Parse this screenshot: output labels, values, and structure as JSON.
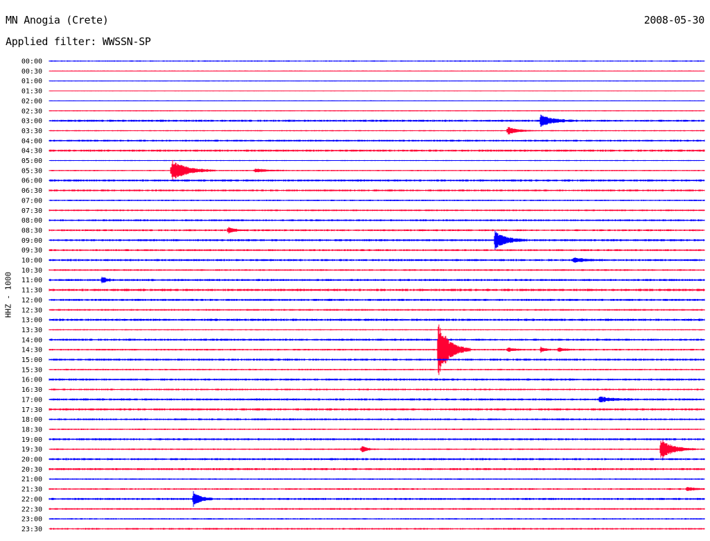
{
  "header": {
    "station": "MN Anogia (Crete)",
    "date": "2008-05-30",
    "filter": "Applied filter: WWSSN-SP"
  },
  "chart_data": {
    "type": "line",
    "title": "",
    "ylabel": "HHZ - 1000",
    "colors": {
      "even": "#0000ff",
      "odd": "#ff0033"
    },
    "row_minutes": 30,
    "row_labels": [
      "00:00",
      "00:30",
      "01:00",
      "01:30",
      "02:00",
      "02:30",
      "03:00",
      "03:30",
      "04:00",
      "04:30",
      "05:00",
      "05:30",
      "06:00",
      "06:30",
      "07:00",
      "07:30",
      "08:00",
      "08:30",
      "09:00",
      "09:30",
      "10:00",
      "10:30",
      "11:00",
      "11:30",
      "12:00",
      "12:30",
      "13:00",
      "13:30",
      "14:00",
      "14:30",
      "15:00",
      "15:30",
      "16:00",
      "16:30",
      "17:00",
      "17:30",
      "18:00",
      "18:30",
      "19:00",
      "19:30",
      "20:00",
      "20:30",
      "21:00",
      "21:30",
      "22:00",
      "22:30",
      "23:00",
      "23:30"
    ],
    "noise": [
      0.6,
      0.4,
      0.4,
      0.4,
      0.4,
      0.5,
      1.0,
      0.6,
      0.9,
      1.0,
      0.5,
      0.6,
      1.0,
      0.9,
      0.7,
      0.8,
      0.9,
      0.9,
      1.0,
      0.9,
      1.0,
      0.8,
      1.0,
      1.1,
      1.0,
      0.8,
      1.1,
      0.6,
      1.0,
      0.8,
      1.0,
      0.7,
      1.0,
      0.8,
      1.0,
      1.0,
      0.9,
      0.7,
      1.0,
      0.7,
      1.0,
      1.0,
      0.7,
      0.8,
      1.0,
      0.8,
      0.7,
      0.8
    ],
    "events": [
      {
        "row": 6,
        "minute": 22.5,
        "amplitude": 9,
        "duration": 1.5
      },
      {
        "row": 7,
        "minute": 21.0,
        "amplitude": 6,
        "duration": 1.2
      },
      {
        "row": 11,
        "minute": 5.6,
        "amplitude": 16,
        "duration": 2.0
      },
      {
        "row": 11,
        "minute": 9.4,
        "amplitude": 3,
        "duration": 1.5
      },
      {
        "row": 17,
        "minute": 8.2,
        "amplitude": 5,
        "duration": 0.8
      },
      {
        "row": 18,
        "minute": 20.4,
        "amplitude": 13,
        "duration": 1.5
      },
      {
        "row": 20,
        "minute": 24.0,
        "amplitude": 3,
        "duration": 1.6
      },
      {
        "row": 22,
        "minute": 2.4,
        "amplitude": 5,
        "duration": 0.6
      },
      {
        "row": 29,
        "minute": 17.8,
        "amplitude": 40,
        "duration": 1.5
      },
      {
        "row": 29,
        "minute": 21.0,
        "amplitude": 3,
        "duration": 0.8
      },
      {
        "row": 29,
        "minute": 22.5,
        "amplitude": 4,
        "duration": 0.5
      },
      {
        "row": 29,
        "minute": 23.3,
        "amplitude": 3,
        "duration": 0.8
      },
      {
        "row": 34,
        "minute": 25.2,
        "amplitude": 4,
        "duration": 1.4
      },
      {
        "row": 39,
        "minute": 14.3,
        "amplitude": 6,
        "duration": 0.6
      },
      {
        "row": 39,
        "minute": 28.0,
        "amplitude": 15,
        "duration": 1.6
      },
      {
        "row": 43,
        "minute": 29.2,
        "amplitude": 3,
        "duration": 1.0
      },
      {
        "row": 44,
        "minute": 6.6,
        "amplitude": 12,
        "duration": 0.9
      }
    ]
  }
}
